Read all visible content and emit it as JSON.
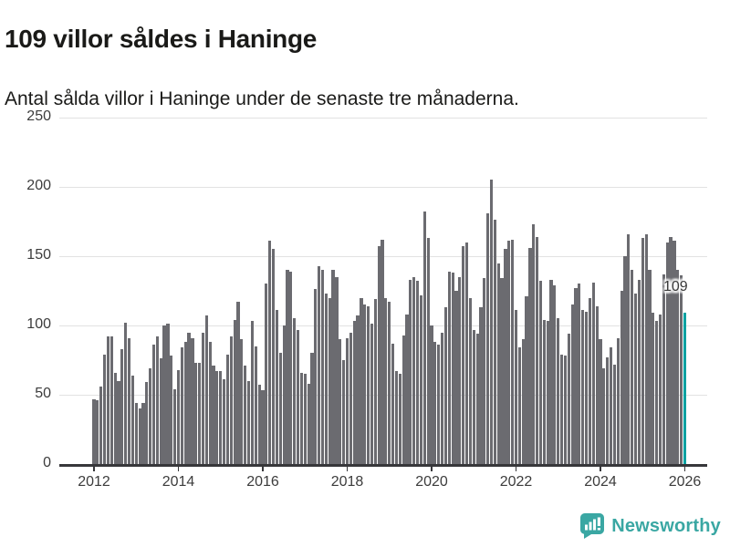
{
  "header": {
    "title": "109 villor såldes i Haninge",
    "subtitle": "Antal sålda villor i Haninge under de senaste tre månaderna."
  },
  "chart_data": {
    "type": "bar",
    "title": "109 villor såldes i Haninge",
    "subtitle": "Antal sålda villor i Haninge under de senaste tre månaderna.",
    "ylabel": "",
    "xlabel": "",
    "ylim": [
      0,
      250
    ],
    "grid": true,
    "legend": false,
    "frequency": "monthly",
    "series_start": "2012-01",
    "series_end": "2026-01",
    "x_tick_labels": [
      "2012",
      "2014",
      "2016",
      "2018",
      "2020",
      "2022",
      "2024",
      "2026"
    ],
    "y_ticks": [
      0,
      50,
      100,
      150,
      200,
      250
    ],
    "bar_color": "#6b6b70",
    "values": [
      47,
      46,
      56,
      79,
      92,
      92,
      66,
      60,
      83,
      102,
      91,
      64,
      44,
      40,
      44,
      59,
      69,
      86,
      92,
      76,
      100,
      101,
      78,
      54,
      68,
      84,
      88,
      95,
      91,
      73,
      73,
      95,
      107,
      88,
      71,
      67,
      67,
      61,
      79,
      92,
      104,
      117,
      90,
      71,
      60,
      103,
      85,
      57,
      53,
      130,
      161,
      155,
      111,
      80,
      100,
      140,
      139,
      105,
      97,
      66,
      65,
      58,
      80,
      126,
      143,
      140,
      123,
      120,
      140,
      135,
      90,
      75,
      91,
      95,
      103,
      107,
      120,
      115,
      114,
      101,
      119,
      157,
      162,
      120,
      117,
      87,
      67,
      65,
      93,
      108,
      133,
      135,
      132,
      122,
      182,
      163,
      100,
      88,
      86,
      95,
      113,
      139,
      138,
      125,
      135,
      157,
      160,
      120,
      97,
      94,
      113,
      134,
      181,
      205,
      176,
      145,
      134,
      155,
      161,
      162,
      111,
      84,
      90,
      121,
      156,
      173,
      164,
      132,
      104,
      103,
      133,
      129,
      105,
      79,
      78,
      94,
      115,
      127,
      130,
      111,
      110,
      120,
      131,
      114,
      90,
      69,
      77,
      84,
      72,
      91,
      125,
      150,
      166,
      140,
      123,
      133,
      163,
      166,
      140,
      109,
      103,
      108,
      137,
      160,
      164,
      161,
      140,
      136,
      109
    ],
    "highlight": {
      "index": 168,
      "label": "109",
      "color": "#00a1a1"
    }
  },
  "footer": {
    "brand": "Newsworthy",
    "brand_color": "#3aa7a3",
    "logo_icon": "bar-chart-speech-bubble-icon"
  }
}
